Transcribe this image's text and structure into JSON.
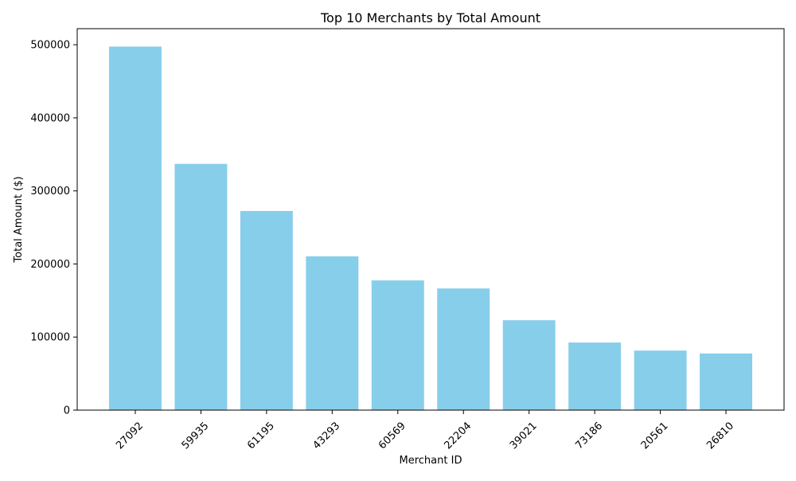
{
  "chart_data": {
    "type": "bar",
    "title": "Top 10 Merchants by Total Amount",
    "xlabel": "Merchant ID",
    "ylabel": "Total Amount ($)",
    "categories": [
      "27092",
      "59935",
      "61195",
      "43293",
      "60569",
      "22204",
      "39021",
      "73186",
      "20561",
      "26810"
    ],
    "values": [
      497500,
      337000,
      272500,
      210500,
      177500,
      166500,
      123000,
      92500,
      81500,
      77500
    ],
    "ylim": [
      0,
      522000
    ],
    "yticks": [
      0,
      100000,
      200000,
      300000,
      400000,
      500000
    ],
    "xtick_rotation": 45,
    "bar_color": "#87ceeb",
    "grid": false,
    "legend": "none"
  }
}
